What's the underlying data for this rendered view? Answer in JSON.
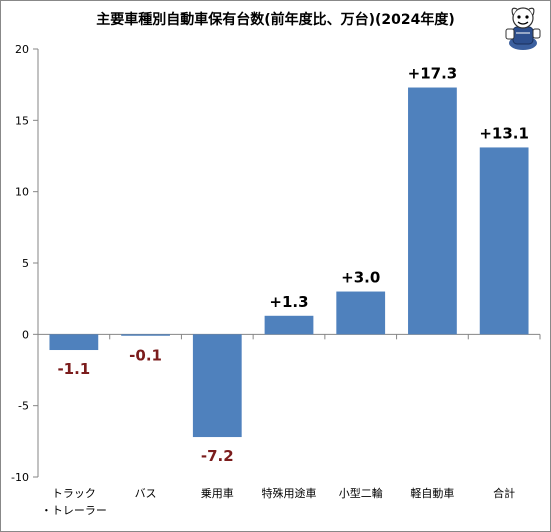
{
  "chart_data": {
    "type": "bar",
    "title": "主要車種別自動車保有台数(前年度比、万台)(2024年度)",
    "xlabel": "",
    "ylabel": "",
    "categories": [
      [
        "トラック",
        "・トレーラー"
      ],
      [
        "バス"
      ],
      [
        "乗用車"
      ],
      [
        "特殊用途車"
      ],
      [
        "小型二輪"
      ],
      [
        "軽自動車"
      ],
      [
        "合計"
      ]
    ],
    "values": [
      -1.1,
      -0.1,
      -7.2,
      1.3,
      3.0,
      17.3,
      13.1
    ],
    "data_labels": [
      "-1.1",
      "-0.1",
      "-7.2",
      "+1.3",
      "+3.0",
      "+17.3",
      "+13.1"
    ],
    "ylim": [
      -10,
      20
    ],
    "yticks": [
      -10,
      -5,
      0,
      5,
      10,
      15,
      20
    ],
    "grid": false,
    "legend": "none",
    "colors": {
      "bar": "#4f81bd",
      "positive_label": "#000000",
      "negative_label": "#7b1c1c",
      "axis": "#868686"
    }
  }
}
